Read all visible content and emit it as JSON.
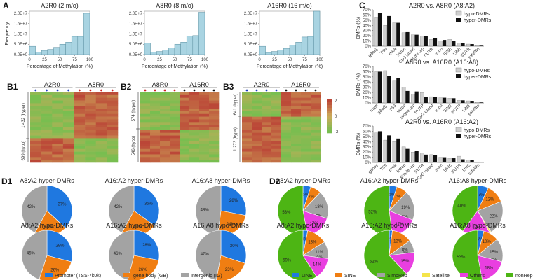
{
  "panels": {
    "A": "A",
    "C": "C",
    "B1": "B1",
    "B2": "B2",
    "B3": "B3",
    "D1": "D1",
    "D2": "D2"
  },
  "hist": {
    "ylabel": "Frequency",
    "xlabel": "Percentage of Methylation (%)",
    "xticks": [
      "0",
      "25",
      "50",
      "75",
      "100"
    ],
    "items": [
      {
        "title": "A2R0 (2 m/o)",
        "yticks": [
          "0.0E+0",
          "5.0E+6",
          "1.0E+7",
          "1.5E+7",
          "2.0E+7"
        ],
        "ymax": 21000000,
        "values": [
          4000000,
          1200000,
          2000000,
          2500000,
          3500000,
          5000000,
          6000000,
          8800000,
          8800000,
          20000000
        ]
      },
      {
        "title": "A8R0 (8 m/o)",
        "yticks": [
          "0.0E+0",
          "5.0E+6",
          "1.0E+7",
          "1.5E+7",
          "2.0E+7"
        ],
        "ymax": 21000000,
        "values": [
          5500000,
          1200000,
          1500000,
          2200000,
          3200000,
          5000000,
          6000000,
          9000000,
          9200000,
          20500000
        ]
      },
      {
        "title": "A16R0 (16 m/o)",
        "yticks": [
          "0.0E+0",
          "5.0E+6",
          "1.0E+7",
          "1.5E+7",
          "2.0E+7"
        ],
        "ymax": 21000000,
        "values": [
          4000000,
          1000000,
          1500000,
          2200000,
          3000000,
          4500000,
          6000000,
          8500000,
          8800000,
          21000000
        ]
      }
    ]
  },
  "dmr": {
    "ylabel": "DMRs (%)",
    "yticks": [
      "0%",
      "10%",
      "20%",
      "30%",
      "40%",
      "50%",
      "60%",
      "70%"
    ],
    "legend": [
      "hypo-DMRs",
      "hyper-DMRs"
    ],
    "colors": {
      "hypo": "#d0d0d0",
      "hyper": "#111111"
    },
    "items": [
      {
        "title": "A2R0  vs. A8R0 (A8:A2)",
        "categories": [
          "gBody",
          "TSS",
          "rmsk",
          "Intron",
          "CpG island",
          "simple rep",
          "5'UTR",
          "exon",
          "SINE",
          "LINE",
          "3'UTR",
          "satellite"
        ],
        "hypo": [
          56,
          40,
          45,
          26,
          22,
          20,
          13,
          10,
          13,
          6,
          4,
          1
        ],
        "hyper": [
          64,
          58,
          45,
          27,
          22,
          20,
          15,
          12,
          10,
          6,
          4,
          1
        ]
      },
      {
        "title": "A8R0  vs. A16R0 (A16:A8)",
        "categories": [
          "rmsk",
          "gBody",
          "TSS",
          "Intron",
          "simple rep",
          "5'UTR",
          "CpG island",
          "exon",
          "SINE",
          "3'UTR",
          "LINE",
          "satellite"
        ],
        "hypo": [
          60,
          62,
          42,
          30,
          17,
          20,
          12,
          10,
          9,
          5,
          4,
          1
        ],
        "hyper": [
          60,
          52,
          48,
          23,
          22,
          12,
          12,
          10,
          9,
          5,
          4,
          1
        ]
      },
      {
        "title": "A2R0  vs. A16R0 (A16:A2)",
        "categories": [
          "gBody",
          "TSS",
          "rmsk",
          "Intron",
          "simple rep",
          "5'UTR",
          "CpG island",
          "exon",
          "SINE",
          "3'UTR",
          "LINE",
          "satellite"
        ],
        "hypo": [
          57,
          43,
          40,
          30,
          20,
          18,
          15,
          10,
          8,
          12,
          5,
          1
        ],
        "hyper": [
          60,
          52,
          46,
          26,
          22,
          15,
          14,
          10,
          8,
          6,
          5,
          1
        ]
      }
    ]
  },
  "heatmaps": [
    {
      "id": "B1",
      "groups": [
        "A2R0",
        "A8R0"
      ],
      "group_colors": [
        "#1f3fbf",
        "#cc2222"
      ],
      "dot_colors": [
        "#1f3fbf",
        "#cc2222"
      ],
      "row_labels": [
        "1,432 (hyper)",
        "699 (hypo)"
      ],
      "split": 0.66
    },
    {
      "id": "B2",
      "groups": [
        "A8R0",
        "A16R0"
      ],
      "group_colors": [
        "#cc2222",
        "#222222"
      ],
      "dot_colors": [
        "#cc2222",
        "#111111"
      ],
      "row_labels": [
        "574 (hyper)",
        "546 (hypo)"
      ],
      "split": 0.52
    },
    {
      "id": "B3",
      "groups": [
        "A2R0",
        "A16R0"
      ],
      "group_colors": [
        "#1f3fbf",
        "#222222"
      ],
      "dot_colors": [
        "#1f3fbf",
        "#111111"
      ],
      "row_labels": [
        "641 (hyper)",
        "1,273 (hypo)"
      ],
      "split": 0.34
    }
  ],
  "colorscale": {
    "ticks": [
      "2",
      "0",
      "-2"
    ]
  },
  "pies1": {
    "colors": [
      "#1f78e0",
      "#f07e12",
      "#a3a3a3"
    ],
    "legend": [
      "Promoter (TSS-7k0k)",
      "gene body (GB)",
      "Intergenic (IG)"
    ],
    "items": [
      {
        "title": "A8:A2 hyper-DMRs",
        "values": [
          37,
          21,
          42
        ],
        "labels": [
          "37%",
          "21%",
          "42%"
        ]
      },
      {
        "title": "A16:A2 hyper-DMRs",
        "values": [
          35,
          23,
          42
        ],
        "labels": [
          "35%",
          "23%",
          "42%"
        ]
      },
      {
        "title": "A16:A8 hyper-DMRs",
        "values": [
          28,
          24,
          48
        ],
        "labels": [
          "28%",
          "24%",
          "48%"
        ]
      },
      {
        "title": "A8:A2 hypo-DMRs",
        "values": [
          29,
          26,
          45
        ],
        "labels": [
          "29%",
          "26%",
          "45%"
        ]
      },
      {
        "title": "A16:A2 hypo-DMRs",
        "values": [
          28,
          26,
          46
        ],
        "labels": [
          "28%",
          "26%",
          "46%"
        ]
      },
      {
        "title": "A16:A8 hypo-DMRs",
        "values": [
          30,
          23,
          47
        ],
        "labels": [
          "30%",
          "23%",
          "47%"
        ]
      }
    ]
  },
  "pies2": {
    "colors": [
      "#1f78e0",
      "#f07e12",
      "#a3a3a3",
      "#f4e44a",
      "#e93fe0",
      "#4db514"
    ],
    "legend": [
      "LINE",
      "SINE",
      "SimpRep",
      "Satellite",
      "Others",
      "nonRep"
    ],
    "items": [
      {
        "title": "A8:A2 hyper-DMRs",
        "values": [
          5,
          7,
          18,
          0,
          17,
          53
        ],
        "labels": [
          "5%",
          "7%",
          "18%",
          "0%",
          "17%",
          "53%"
        ]
      },
      {
        "title": "A16:A2 hyper-DMRs",
        "values": [
          5,
          7,
          19,
          0,
          17,
          52
        ],
        "labels": [
          "5%",
          "7%",
          "19%",
          "0%",
          "17%",
          "52%"
        ]
      },
      {
        "title": "A16:A8 hyper-DMRs",
        "values": [
          7,
          12,
          22,
          1,
          18,
          40
        ],
        "labels": [
          "7%",
          "12%",
          "22%",
          "1%",
          "18%",
          "40%"
        ]
      },
      {
        "title": "A8:A2 hypo-DMRs",
        "values": [
          3,
          13,
          11,
          0,
          14,
          59
        ],
        "labels": [
          "3%",
          "13%",
          "11%",
          "0%",
          "14%",
          "59%"
        ]
      },
      {
        "title": "A16:A2 hypo-DMRs",
        "values": [
          2,
          13,
          8,
          0,
          15,
          62
        ],
        "labels": [
          "2%",
          "13%",
          "8%",
          "0%",
          "15%",
          "62%"
        ]
      },
      {
        "title": "A16:A8 hypo-DMRs",
        "values": [
          4,
          10,
          15,
          0,
          18,
          53
        ],
        "labels": [
          "4%",
          "10%",
          "15%",
          "0%",
          "18%",
          "53%"
        ]
      }
    ]
  }
}
